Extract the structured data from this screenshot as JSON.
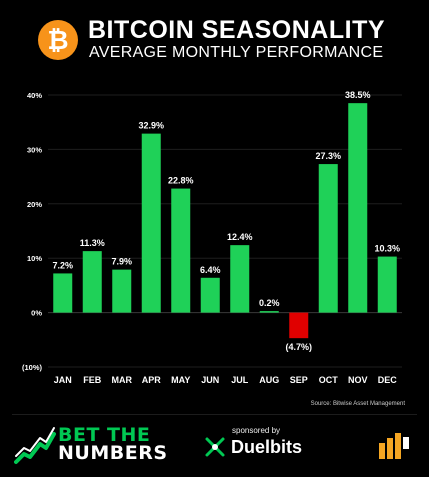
{
  "header": {
    "logo_symbol": "₿",
    "title": "BITCOIN SEASONALITY",
    "subtitle": "AVERAGE MONTHLY PERFORMANCE"
  },
  "chart_data": {
    "type": "bar",
    "categories": [
      "JAN",
      "FEB",
      "MAR",
      "APR",
      "MAY",
      "JUN",
      "JUL",
      "AUG",
      "SEP",
      "OCT",
      "NOV",
      "DEC"
    ],
    "values": [
      7.2,
      11.3,
      7.9,
      32.9,
      22.8,
      6.4,
      12.4,
      0.2,
      -4.7,
      27.3,
      38.5,
      10.3
    ],
    "value_labels": [
      "7.2%",
      "11.3%",
      "7.9%",
      "32.9%",
      "22.8%",
      "6.4%",
      "12.4%",
      "0.2%",
      "(4.7%)",
      "27.3%",
      "38.5%",
      "10.3%"
    ],
    "ylim": [
      -10,
      40
    ],
    "yticks": [
      40,
      30,
      20,
      10,
      0,
      -10
    ],
    "ytick_labels": [
      "40%",
      "30%",
      "20%",
      "10%",
      "0%",
      "(10%)"
    ],
    "grid": true,
    "positive_color": "#1fd158",
    "negative_color": "#e00000"
  },
  "source_text": "Source: Bitwise Asset Management",
  "footer": {
    "brand_line1": "BET THE",
    "brand_line2": "NUMBERS",
    "sponsored_by": "sponsored by",
    "sponsor_name": "Duelbits",
    "brand_color": "#00c853",
    "corner_logo_color": "#f5a623"
  }
}
